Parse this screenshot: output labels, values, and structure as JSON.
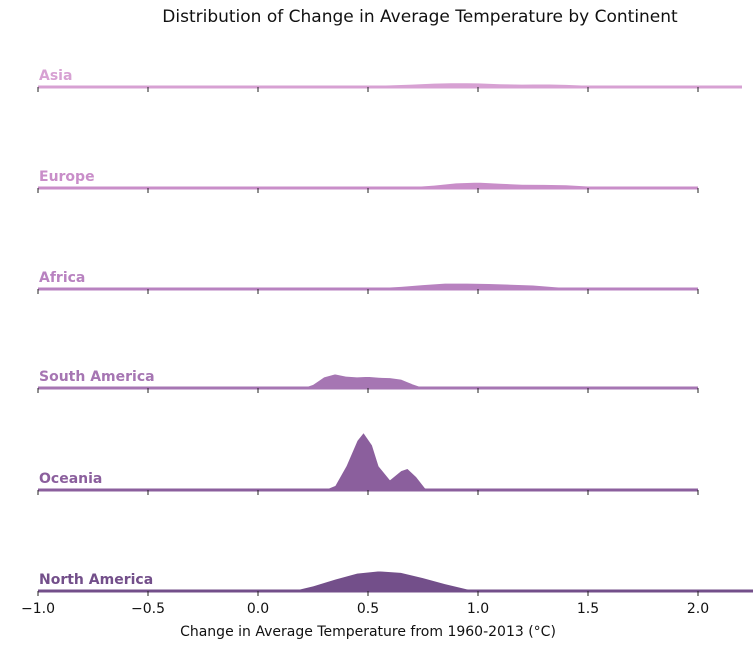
{
  "chart_data": {
    "type": "area",
    "subtype": "ridgeline",
    "title": "Distribution of Change in Average Temperature by Continent",
    "xlabel": "Change in Average Temperature from 1960-2013 (°C)",
    "ylabel": "",
    "xlim": [
      -1.0,
      2.0
    ],
    "x_ticks": [
      -1.0,
      -0.5,
      0.0,
      0.5,
      1.0,
      1.5,
      2.0
    ],
    "x_tick_labels": [
      "−1.0",
      "−0.5",
      "0.0",
      "0.5",
      "1.0",
      "1.5",
      "2.0"
    ],
    "grid": false,
    "series": [
      {
        "name": "Asia",
        "color": "#d7a1d3",
        "x": [
          -1.0,
          0.3,
          0.4,
          0.5,
          0.6,
          0.7,
          0.8,
          0.9,
          1.0,
          1.1,
          1.2,
          1.3,
          1.4,
          1.5,
          1.6,
          1.7,
          1.8,
          1.9,
          2.0,
          2.1,
          2.2
        ],
        "y": [
          0.0,
          0.0,
          0.05,
          0.12,
          0.15,
          0.2,
          0.27,
          0.3,
          0.28,
          0.22,
          0.2,
          0.21,
          0.18,
          0.12,
          0.07,
          0.04,
          0.02,
          0.01,
          0.0,
          0.0,
          0.0
        ]
      },
      {
        "name": "Europe",
        "color": "#c98ec9",
        "x": [
          -1.0,
          0.5,
          0.6,
          0.7,
          0.8,
          0.9,
          1.0,
          1.1,
          1.2,
          1.3,
          1.4,
          1.5,
          1.6,
          1.7,
          2.0
        ],
        "y": [
          0.0,
          0.02,
          0.07,
          0.1,
          0.2,
          0.35,
          0.4,
          0.32,
          0.26,
          0.25,
          0.23,
          0.14,
          0.02,
          0.0,
          0.0
        ]
      },
      {
        "name": "Africa",
        "color": "#b882c0",
        "x": [
          -1.0,
          0.15,
          0.25,
          0.35,
          0.45,
          0.55,
          0.65,
          0.75,
          0.85,
          0.95,
          1.05,
          1.15,
          1.25,
          1.35,
          1.45,
          1.55,
          2.0
        ],
        "y": [
          0.0,
          0.0,
          0.07,
          0.09,
          0.08,
          0.1,
          0.18,
          0.3,
          0.4,
          0.4,
          0.37,
          0.33,
          0.27,
          0.16,
          0.06,
          0.0,
          0.0
        ]
      },
      {
        "name": "South America",
        "color": "#a676b3",
        "x": [
          -1.0,
          0.2,
          0.25,
          0.3,
          0.35,
          0.4,
          0.45,
          0.5,
          0.55,
          0.6,
          0.65,
          0.7,
          0.75,
          0.8,
          2.0
        ],
        "y": [
          0.0,
          0.0,
          0.25,
          0.75,
          0.95,
          0.8,
          0.75,
          0.78,
          0.72,
          0.7,
          0.6,
          0.3,
          0.05,
          0.0,
          0.0
        ]
      },
      {
        "name": "Oceania",
        "color": "#8b5f9d",
        "x": [
          -1.0,
          0.3,
          0.35,
          0.4,
          0.45,
          0.48,
          0.52,
          0.55,
          0.6,
          0.65,
          0.68,
          0.72,
          0.76,
          0.8,
          2.0
        ],
        "y": [
          0.0,
          0.0,
          0.3,
          1.6,
          3.3,
          3.85,
          3.0,
          1.6,
          0.7,
          1.3,
          1.45,
          0.9,
          0.15,
          0.0,
          0.0
        ]
      },
      {
        "name": "North America",
        "color": "#734f8a",
        "x": [
          -1.0,
          0.15,
          0.25,
          0.35,
          0.45,
          0.55,
          0.65,
          0.75,
          0.85,
          0.95,
          1.05,
          1.5,
          2.0,
          2.25
        ],
        "y": [
          0.0,
          0.0,
          0.35,
          0.8,
          1.2,
          1.35,
          1.25,
          0.9,
          0.5,
          0.15,
          0.0,
          0.0,
          0.0,
          0.0
        ]
      }
    ]
  }
}
